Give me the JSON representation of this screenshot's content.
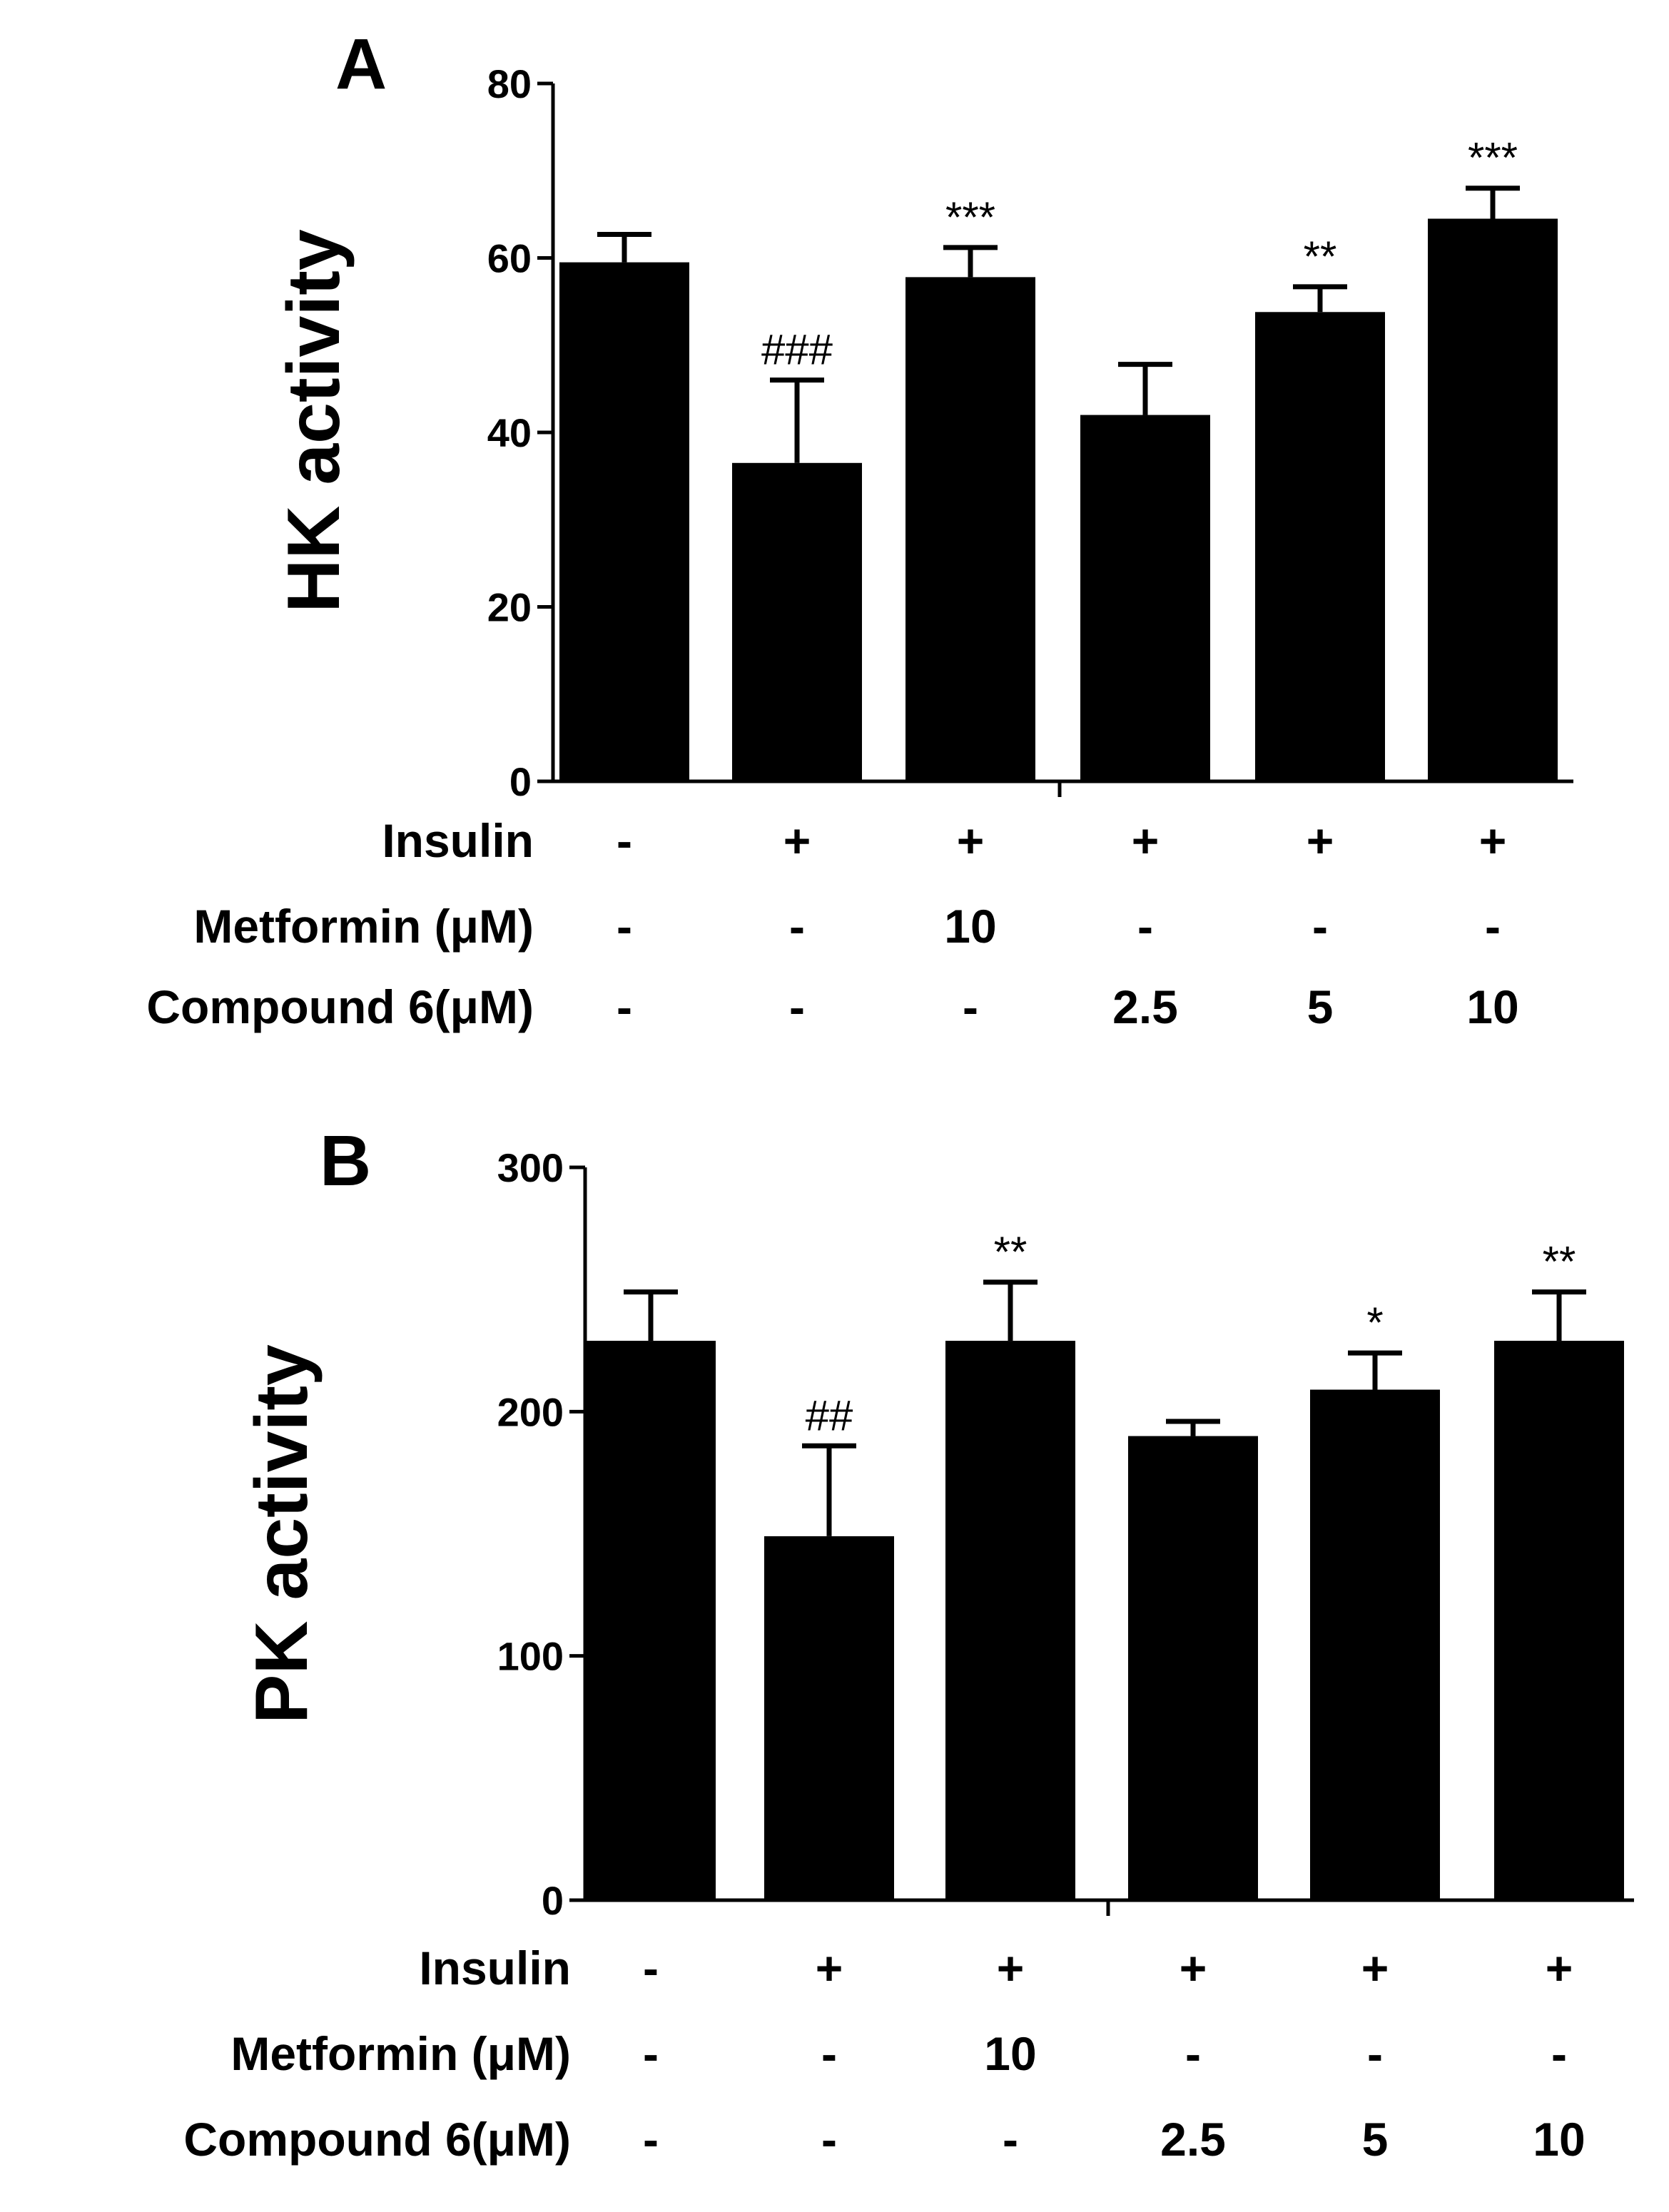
{
  "chart_data": [
    {
      "panel": "A",
      "type": "bar",
      "title": "",
      "ylabel": "HK activity",
      "xlabel": "",
      "ylim": [
        0,
        80
      ],
      "yticks": [
        0,
        20,
        40,
        60,
        80
      ],
      "tick_labels": [
        "0",
        "20",
        "40",
        "60",
        "80"
      ],
      "values": [
        59.5,
        36.5,
        57.8,
        42,
        53.8,
        64.5
      ],
      "errors": [
        3.2,
        9.5,
        3.4,
        5.8,
        2.9,
        3.5
      ],
      "annotations": [
        "",
        "###",
        "***",
        "",
        "**",
        "***"
      ],
      "bar_color": "#000000",
      "treatments": [
        {
          "label": "Insulin",
          "values": [
            "-",
            "+",
            "+",
            "+",
            "+",
            "+"
          ]
        },
        {
          "label": "Metformin (μM)",
          "values": [
            "-",
            "-",
            "10",
            "-",
            "-",
            "-"
          ]
        },
        {
          "label": "Compound 6(μM)",
          "values": [
            "-",
            "-",
            "-",
            "2.5",
            "5",
            "10"
          ]
        }
      ]
    },
    {
      "panel": "B",
      "type": "bar",
      "title": "",
      "ylabel": "PK activity",
      "xlabel": "",
      "ylim": [
        0,
        300
      ],
      "yticks": [
        0,
        100,
        200,
        300
      ],
      "tick_labels": [
        "0",
        "100",
        "200",
        "300"
      ],
      "values": [
        229,
        149,
        229,
        190,
        209,
        229
      ],
      "errors": [
        20,
        37,
        24,
        6,
        15,
        20
      ],
      "annotations": [
        "",
        "##",
        "**",
        "",
        "*",
        "**"
      ],
      "bar_color": "#000000",
      "treatments": [
        {
          "label": "Insulin",
          "values": [
            "-",
            "+",
            "+",
            "+",
            "+",
            "+"
          ]
        },
        {
          "label": "Metformin (μM)",
          "values": [
            "-",
            "-",
            "10",
            "-",
            "-",
            "-"
          ]
        },
        {
          "label": "Compound 6(μM)",
          "values": [
            "-",
            "-",
            "-",
            "2.5",
            "5",
            "10"
          ]
        }
      ]
    }
  ]
}
